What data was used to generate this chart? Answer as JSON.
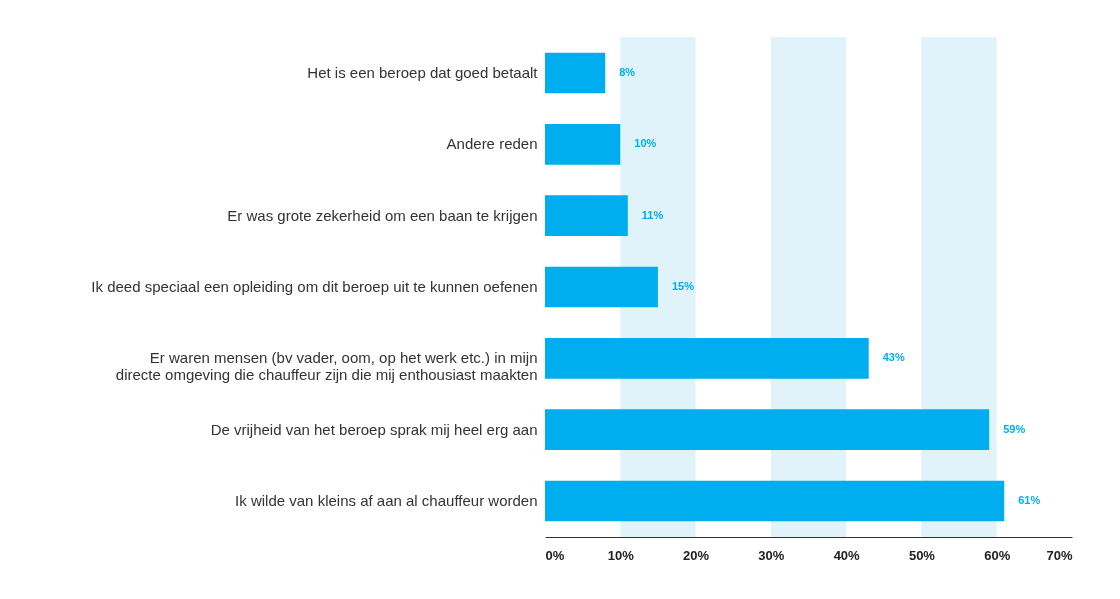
{
  "chart_data": {
    "type": "bar",
    "orientation": "horizontal",
    "categories": [
      "Het is een beroep dat goed betaalt",
      "Andere reden",
      "Er was grote zekerheid om een baan te krijgen",
      "Ik deed speciaal een opleiding om dit beroep uit te kunnen oefenen",
      "Er waren mensen (bv vader, oom, op het werk etc.) in mijn directe omgeving die chauffeur zijn die mij enthousiast maakten",
      "De vrijheid van het beroep sprak mij heel erg aan",
      "Ik wilde van kleins af aan al chauffeur worden"
    ],
    "values": [
      8,
      10,
      11,
      15,
      43,
      59,
      61
    ],
    "value_labels": [
      "8%",
      "10%",
      "11%",
      "15%",
      "43%",
      "59%",
      "61%"
    ],
    "color": "#00aeef",
    "xlim": [
      0,
      70
    ],
    "xticks": [
      {
        "value": 0,
        "label": "0%"
      },
      {
        "value": 10,
        "label": "10%"
      },
      {
        "value": 20,
        "label": "20%"
      },
      {
        "value": 30,
        "label": "30%"
      },
      {
        "value": 40,
        "label": "40%"
      },
      {
        "value": 50,
        "label": "50%"
      },
      {
        "value": 60,
        "label": "60%"
      },
      {
        "value": 70,
        "label": "70%"
      }
    ],
    "bands": [
      {
        "axis": "x",
        "from": 10,
        "to": 20,
        "color": "#e0f3fb"
      },
      {
        "axis": "x",
        "from": 30,
        "to": 40,
        "color": "#e0f3fb"
      },
      {
        "axis": "x",
        "from": 50,
        "to": 60,
        "color": "#e0f3fb"
      }
    ],
    "grid": false
  }
}
